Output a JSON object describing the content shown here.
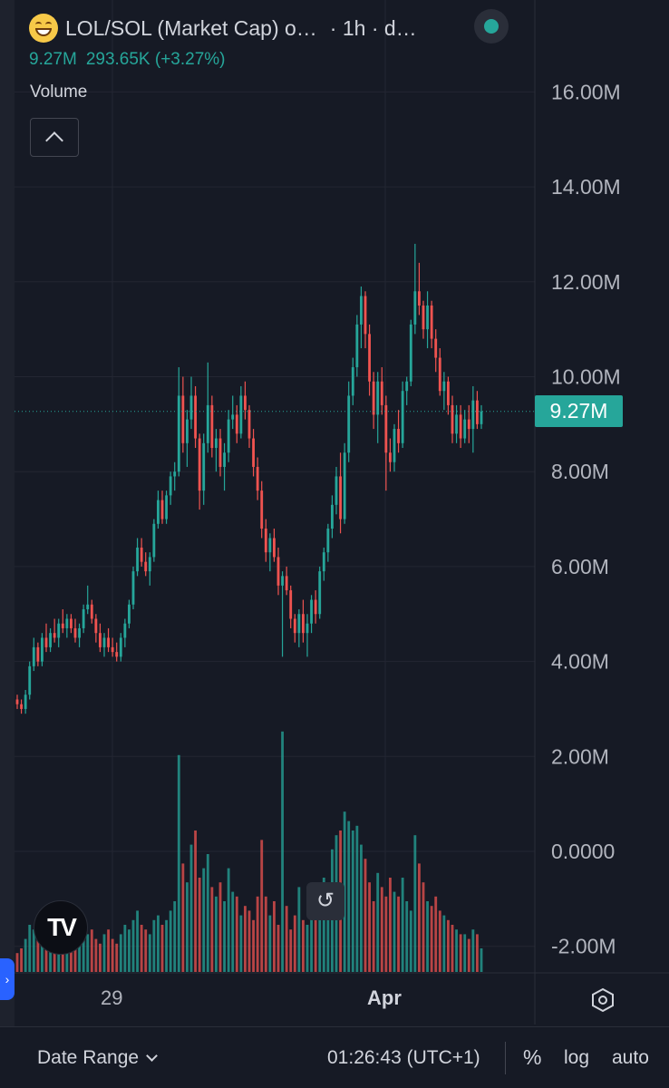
{
  "header": {
    "title": "LOL/SOL (Market Cap) o…",
    "interval": "· 1h · d…",
    "last_value": "9.27M",
    "change": "293.65K (+3.27%)",
    "status_color": "#26a69a",
    "icon": "grinning-face-icon"
  },
  "volume_pane": {
    "label": "Volume"
  },
  "price_tag": {
    "label": "9.27M",
    "color": "#26a69a"
  },
  "chart_data": {
    "type": "candlestick",
    "title": "",
    "xlabel": "",
    "ylabel": "",
    "ylim": [
      -2.5,
      17.5
    ],
    "y_ticks": [
      "16.00M",
      "14.00M",
      "12.00M",
      "10.00M",
      "8.00M",
      "6.00M",
      "4.00M",
      "2.00M",
      "0.0000",
      "-2.00M"
    ],
    "x_ticks": [
      "29",
      "Apr"
    ],
    "last_price": 9.27,
    "up_color": "#26a69a",
    "down_color": "#ef5350",
    "grid": true,
    "candles_ohlc_millions": [
      [
        3.2,
        3.3,
        3.0,
        3.1
      ],
      [
        3.1,
        3.2,
        2.9,
        3.0
      ],
      [
        3.0,
        3.4,
        2.9,
        3.3
      ],
      [
        3.3,
        4.0,
        3.2,
        3.9
      ],
      [
        3.9,
        4.5,
        3.8,
        4.3
      ],
      [
        4.3,
        4.4,
        3.9,
        4.0
      ],
      [
        4.0,
        4.6,
        3.9,
        4.5
      ],
      [
        4.5,
        4.8,
        4.2,
        4.3
      ],
      [
        4.3,
        4.7,
        4.2,
        4.6
      ],
      [
        4.6,
        4.9,
        4.4,
        4.5
      ],
      [
        4.5,
        4.9,
        4.3,
        4.8
      ],
      [
        4.8,
        5.1,
        4.6,
        4.7
      ],
      [
        4.7,
        5.0,
        4.5,
        4.9
      ],
      [
        4.9,
        5.0,
        4.6,
        4.7
      ],
      [
        4.7,
        4.9,
        4.4,
        4.5
      ],
      [
        4.5,
        4.8,
        4.3,
        4.7
      ],
      [
        4.7,
        5.2,
        4.6,
        5.1
      ],
      [
        5.1,
        5.6,
        5.0,
        5.2
      ],
      [
        5.2,
        5.3,
        4.8,
        4.9
      ],
      [
        4.9,
        5.0,
        4.4,
        4.6
      ],
      [
        4.6,
        4.8,
        4.2,
        4.3
      ],
      [
        4.3,
        4.6,
        4.1,
        4.5
      ],
      [
        4.5,
        4.7,
        4.2,
        4.3
      ],
      [
        4.3,
        4.5,
        4.1,
        4.2
      ],
      [
        4.2,
        4.4,
        4.0,
        4.1
      ],
      [
        4.1,
        4.6,
        4.0,
        4.5
      ],
      [
        4.5,
        4.9,
        4.3,
        4.8
      ],
      [
        4.8,
        5.3,
        4.7,
        5.2
      ],
      [
        5.2,
        6.0,
        5.1,
        5.9
      ],
      [
        5.9,
        6.6,
        5.8,
        6.4
      ],
      [
        6.4,
        6.6,
        6.0,
        6.1
      ],
      [
        6.1,
        6.3,
        5.8,
        5.9
      ],
      [
        5.9,
        6.3,
        5.6,
        6.2
      ],
      [
        6.2,
        7.0,
        6.1,
        6.9
      ],
      [
        6.9,
        7.6,
        6.8,
        7.4
      ],
      [
        7.4,
        7.6,
        6.9,
        7.0
      ],
      [
        7.0,
        7.6,
        6.9,
        7.5
      ],
      [
        7.5,
        8.0,
        7.3,
        7.9
      ],
      [
        7.9,
        8.2,
        7.6,
        8.0
      ],
      [
        8.0,
        10.2,
        7.9,
        9.6
      ],
      [
        9.6,
        10.0,
        8.4,
        8.6
      ],
      [
        8.6,
        9.3,
        8.1,
        9.1
      ],
      [
        9.1,
        10.0,
        8.9,
        9.6
      ],
      [
        9.6,
        9.8,
        8.5,
        8.7
      ],
      [
        8.7,
        8.8,
        7.2,
        7.6
      ],
      [
        7.6,
        8.8,
        7.3,
        8.6
      ],
      [
        8.6,
        10.3,
        8.4,
        9.4
      ],
      [
        9.4,
        9.6,
        8.3,
        8.5
      ],
      [
        8.5,
        8.9,
        8.0,
        8.7
      ],
      [
        8.7,
        8.9,
        7.9,
        8.1
      ],
      [
        8.1,
        8.6,
        7.6,
        8.4
      ],
      [
        8.4,
        9.3,
        8.2,
        9.1
      ],
      [
        9.1,
        9.6,
        8.9,
        9.2
      ],
      [
        9.2,
        9.4,
        8.6,
        8.8
      ],
      [
        8.8,
        9.8,
        8.7,
        9.6
      ],
      [
        9.6,
        9.9,
        9.1,
        9.3
      ],
      [
        9.3,
        9.4,
        8.5,
        8.7
      ],
      [
        8.7,
        8.9,
        7.9,
        8.1
      ],
      [
        8.1,
        8.3,
        7.4,
        7.6
      ],
      [
        7.6,
        7.8,
        6.6,
        6.8
      ],
      [
        6.8,
        7.0,
        6.1,
        6.3
      ],
      [
        6.3,
        6.7,
        5.9,
        6.6
      ],
      [
        6.6,
        6.8,
        6.1,
        6.2
      ],
      [
        6.2,
        6.4,
        5.4,
        5.6
      ],
      [
        5.6,
        5.9,
        4.1,
        5.8
      ],
      [
        5.8,
        6.0,
        5.4,
        5.5
      ],
      [
        5.5,
        5.6,
        4.7,
        4.9
      ],
      [
        4.9,
        5.0,
        4.4,
        4.6
      ],
      [
        4.6,
        5.1,
        4.3,
        5.0
      ],
      [
        5.0,
        5.3,
        4.4,
        4.6
      ],
      [
        4.6,
        5.0,
        4.1,
        4.8
      ],
      [
        4.8,
        5.4,
        4.6,
        5.3
      ],
      [
        5.3,
        5.5,
        4.8,
        5.0
      ],
      [
        5.0,
        6.0,
        4.9,
        5.9
      ],
      [
        5.9,
        6.4,
        5.7,
        6.3
      ],
      [
        6.3,
        6.9,
        6.1,
        6.8
      ],
      [
        6.8,
        7.5,
        6.6,
        7.3
      ],
      [
        7.3,
        8.1,
        7.1,
        7.9
      ],
      [
        7.9,
        8.4,
        6.7,
        7.0
      ],
      [
        7.0,
        8.6,
        6.9,
        8.4
      ],
      [
        8.4,
        9.9,
        8.2,
        9.6
      ],
      [
        9.6,
        10.4,
        9.4,
        10.2
      ],
      [
        10.2,
        11.3,
        10.0,
        11.1
      ],
      [
        11.1,
        11.9,
        10.6,
        11.7
      ],
      [
        11.7,
        11.8,
        10.6,
        10.9
      ],
      [
        10.9,
        11.1,
        9.6,
        9.9
      ],
      [
        9.9,
        10.1,
        8.9,
        9.2
      ],
      [
        9.2,
        10.1,
        8.6,
        9.9
      ],
      [
        9.9,
        10.2,
        9.2,
        9.4
      ],
      [
        9.4,
        9.6,
        7.6,
        8.4
      ],
      [
        8.4,
        8.7,
        8.0,
        8.2
      ],
      [
        8.2,
        9.0,
        8.0,
        8.9
      ],
      [
        8.9,
        9.3,
        8.4,
        8.6
      ],
      [
        8.6,
        9.9,
        8.5,
        9.7
      ],
      [
        9.7,
        10.0,
        9.4,
        9.9
      ],
      [
        9.9,
        11.2,
        9.8,
        11.1
      ],
      [
        11.1,
        12.8,
        10.9,
        11.8
      ],
      [
        11.8,
        12.4,
        11.3,
        11.5
      ],
      [
        11.5,
        11.6,
        10.8,
        11.0
      ],
      [
        11.0,
        11.8,
        10.6,
        11.5
      ],
      [
        11.5,
        11.6,
        10.6,
        10.8
      ],
      [
        10.8,
        11.0,
        10.1,
        10.4
      ],
      [
        10.4,
        10.6,
        9.6,
        9.7
      ],
      [
        9.7,
        10.1,
        9.3,
        9.9
      ],
      [
        9.9,
        10.0,
        9.2,
        9.4
      ],
      [
        9.4,
        9.6,
        8.6,
        8.8
      ],
      [
        8.8,
        9.4,
        8.6,
        9.2
      ],
      [
        9.2,
        9.4,
        8.5,
        8.7
      ],
      [
        8.7,
        9.3,
        8.6,
        9.1
      ],
      [
        9.1,
        9.4,
        8.6,
        8.9
      ],
      [
        8.9,
        9.8,
        8.4,
        9.5
      ],
      [
        9.5,
        9.7,
        8.9,
        9.0
      ],
      [
        9.0,
        9.4,
        8.9,
        9.27
      ]
    ],
    "volume_millions": [
      0.4,
      0.5,
      0.7,
      1.0,
      0.9,
      1.1,
      0.8,
      0.9,
      1.2,
      0.8,
      1.4,
      1.0,
      0.9,
      0.8,
      0.7,
      1.2,
      1.0,
      0.8,
      0.9,
      0.7,
      0.6,
      0.8,
      0.9,
      0.7,
      0.6,
      0.8,
      1.0,
      0.9,
      1.1,
      1.3,
      1.0,
      0.9,
      0.8,
      1.1,
      1.2,
      1.0,
      1.1,
      1.3,
      1.5,
      4.6,
      2.3,
      1.9,
      2.7,
      3.0,
      2.0,
      2.2,
      2.5,
      1.8,
      1.6,
      1.9,
      1.5,
      2.2,
      1.7,
      1.6,
      1.2,
      1.4,
      1.3,
      1.1,
      1.6,
      2.8,
      1.6,
      1.2,
      1.5,
      1.0,
      5.1,
      1.4,
      0.9,
      1.2,
      1.8,
      1.1,
      1.0,
      1.3,
      1.2,
      1.6,
      2.0,
      1.8,
      2.6,
      2.9,
      3.0,
      3.4,
      3.2,
      3.0,
      3.1,
      2.7,
      2.4,
      1.9,
      1.5,
      2.1,
      1.8,
      1.6,
      2.0,
      1.7,
      1.6,
      2.0,
      1.5,
      1.3,
      2.9,
      2.3,
      1.9,
      1.5,
      1.4,
      1.6,
      1.3,
      1.2,
      1.1,
      1.0,
      0.9,
      0.8,
      0.8,
      0.7,
      0.9,
      0.8,
      0.5
    ]
  },
  "time_axis": {
    "labels": [
      "29",
      "Apr"
    ]
  },
  "footer": {
    "date_range": "Date Range",
    "clock": "01:26:43 (UTC+1)",
    "percent": "%",
    "log": "log",
    "auto": "auto"
  }
}
